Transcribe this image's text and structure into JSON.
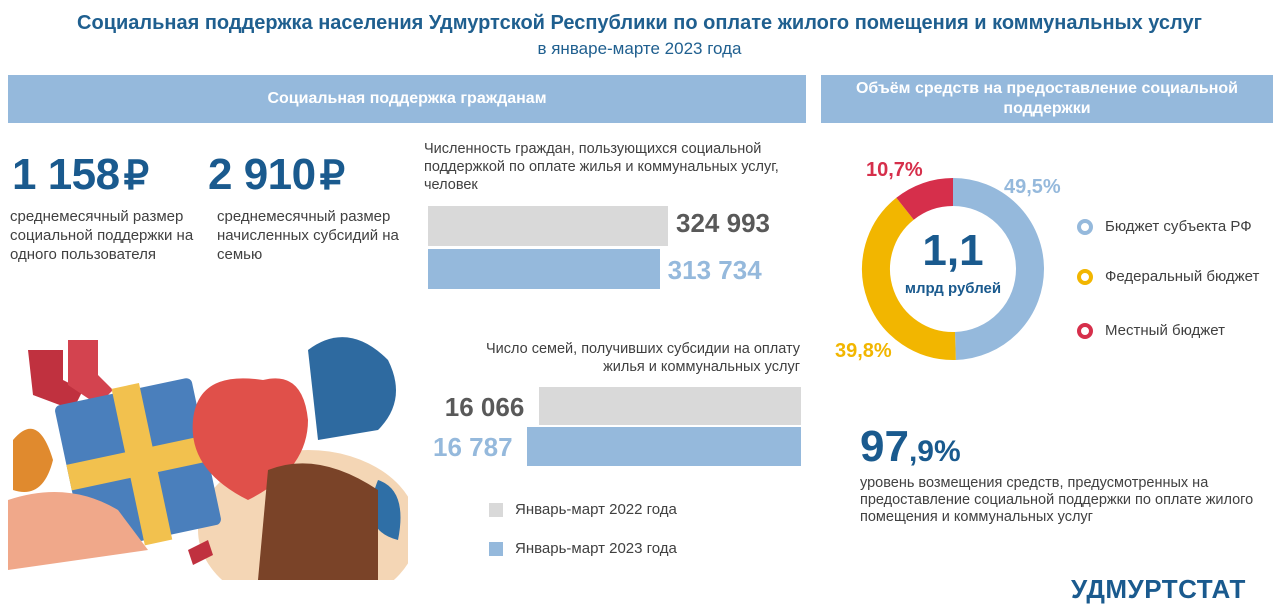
{
  "header": {
    "title": "Социальная поддержка населения Удмуртской Республики по оплате жилого помещения и коммунальных  услуг",
    "subtitle": "в январе-марте 2023 года"
  },
  "left_band": "Социальная поддержка гражданам",
  "right_band": "Объём средств на предоставление социальной  поддержки",
  "kpi1": {
    "value": "1 158",
    "currency": "₽",
    "desc": "среднемесячный размер социальной поддержки на одного пользователя"
  },
  "kpi2": {
    "value": "2 910",
    "currency": "₽",
    "desc": "среднемесячный размер начисленных  субсидий на семью"
  },
  "chart_data": [
    {
      "type": "bar",
      "title": "Численность граждан, пользующихся  социальной поддержкой по оплате жилья и коммунальных услуг, человек",
      "series": [
        {
          "name": "Январь-март 2022 года",
          "values": [
            324993
          ],
          "label": "324 993",
          "color": "#d9d9d9"
        },
        {
          "name": "Январь-март 2023 года",
          "values": [
            313734
          ],
          "label": "313 734",
          "color": "#95b9dc"
        }
      ]
    },
    {
      "type": "bar",
      "title": "Число  семей, получивших  субсидии на оплату жилья и коммунальных  услуг",
      "series": [
        {
          "name": "Январь-март 2022 года",
          "values": [
            16066
          ],
          "label": "16 066",
          "color": "#d9d9d9"
        },
        {
          "name": "Январь-март 2023 года",
          "values": [
            16787
          ],
          "label": "16 787",
          "color": "#95b9dc"
        }
      ]
    },
    {
      "type": "pie",
      "center_value": "1,1",
      "center_unit": "млрд рублей",
      "slices": [
        {
          "name": "Бюджет субъекта РФ",
          "value": 49.5,
          "label": "49,5%",
          "color": "#95b9dc"
        },
        {
          "name": "Федеральный бюджет",
          "value": 39.8,
          "label": "39,8%",
          "color": "#f2b600"
        },
        {
          "name": "Местный бюджет",
          "value": 10.7,
          "label": "10,7%",
          "color": "#d62f4b"
        }
      ]
    }
  ],
  "legend": {
    "y2022": "Январь-март 2022 года",
    "y2023": "Январь-март 2023 года"
  },
  "reimbursement": {
    "value_int": "97",
    "value_frac": ",9%",
    "desc": "уровень возмещения средств, предусмотренных на предоставление социальной поддержки по оплате жилого помещения и коммунальных  услуг"
  },
  "logo": "УДМУРТСТАТ"
}
